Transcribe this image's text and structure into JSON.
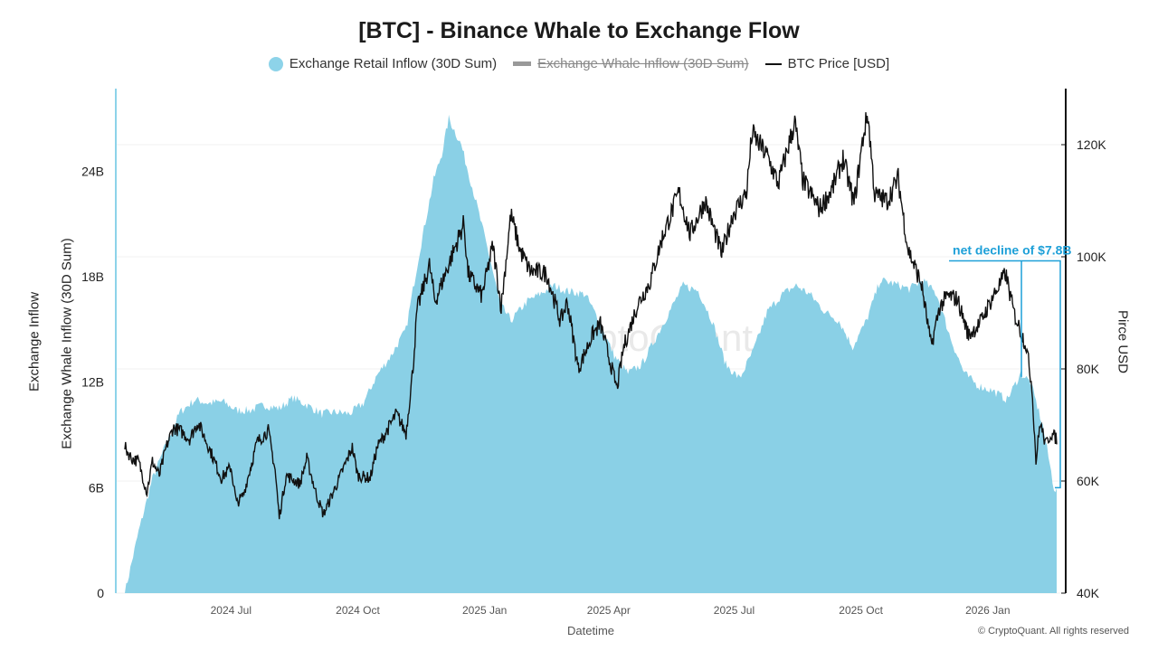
{
  "title": "[BTC] - Binance Whale to Exchange Flow",
  "legend": [
    {
      "label": "Exchange Retail Inflow (30D Sum)",
      "color": "#8dd3e9",
      "shape": "circle",
      "hidden": false
    },
    {
      "label": "Exchange Whale Inflow (30D Sum)",
      "color": "#999999",
      "shape": "bar",
      "hidden": true
    },
    {
      "label": "BTC Price [USD]",
      "color": "#111111",
      "shape": "line",
      "hidden": false
    }
  ],
  "axes": {
    "left_label_1": "Exchange Inflow",
    "left_label_2": "Exchange Whale Inflow (30D Sum)",
    "right_label": "Pirce USD",
    "x_label": "Datetime"
  },
  "credit": "© CryptoQuant. All rights reserved",
  "watermark": "CryptoQuant",
  "colors": {
    "area": "#8ad0e6",
    "price": "#111111",
    "annotation": "#1ea0d8",
    "axis_left": "#8dd3e9"
  },
  "chart_data": {
    "type": "area",
    "x_range": [
      "2024-04-15",
      "2026-02-20"
    ],
    "left_axis": {
      "ticks": [
        0,
        6,
        12,
        18,
        24
      ],
      "tick_labels": [
        "0",
        "6B",
        "12B",
        "18B",
        "24B"
      ],
      "unit": "B",
      "ylim": [
        0,
        28.7
      ]
    },
    "right_axis": {
      "ticks": [
        40000,
        60000,
        80000,
        100000,
        120000
      ],
      "tick_labels": [
        "40K",
        "60K",
        "80K",
        "100K",
        "120K"
      ],
      "ylim": [
        40000,
        130000
      ]
    },
    "x_ticks": [
      {
        "date": "2024-07-01",
        "label": "2024 Jul"
      },
      {
        "date": "2024-10-01",
        "label": "2024 Oct"
      },
      {
        "date": "2025-01-01",
        "label": "2025 Jan"
      },
      {
        "date": "2025-04-01",
        "label": "2025 Apr"
      },
      {
        "date": "2025-07-01",
        "label": "2025 Jul"
      },
      {
        "date": "2025-10-01",
        "label": "2025 Oct"
      },
      {
        "date": "2026-01-01",
        "label": "2026 Jan"
      }
    ],
    "series": [
      {
        "name": "Exchange Retail Inflow (30D Sum)",
        "unit": "B",
        "points": [
          [
            "2024-04-15",
            0.0
          ],
          [
            "2024-04-25",
            3.5
          ],
          [
            "2024-05-05",
            6.5
          ],
          [
            "2024-05-15",
            8.5
          ],
          [
            "2024-05-25",
            10.3
          ],
          [
            "2024-06-05",
            11.0
          ],
          [
            "2024-06-15",
            10.8
          ],
          [
            "2024-06-25",
            10.9
          ],
          [
            "2024-07-05",
            10.4
          ],
          [
            "2024-07-15",
            10.4
          ],
          [
            "2024-07-25",
            10.7
          ],
          [
            "2024-08-05",
            10.5
          ],
          [
            "2024-08-15",
            11.1
          ],
          [
            "2024-08-25",
            10.7
          ],
          [
            "2024-09-05",
            10.2
          ],
          [
            "2024-09-15",
            10.3
          ],
          [
            "2024-09-25",
            10.2
          ],
          [
            "2024-10-05",
            10.8
          ],
          [
            "2024-10-15",
            12.4
          ],
          [
            "2024-10-25",
            13.5
          ],
          [
            "2024-11-05",
            15.0
          ],
          [
            "2024-11-15",
            19.5
          ],
          [
            "2024-11-25",
            23.5
          ],
          [
            "2024-12-01",
            25.0
          ],
          [
            "2024-12-06",
            27.0
          ],
          [
            "2024-12-15",
            25.5
          ],
          [
            "2024-12-25",
            22.5
          ],
          [
            "2025-01-05",
            19.0
          ],
          [
            "2025-01-12",
            16.5
          ],
          [
            "2025-01-20",
            15.5
          ],
          [
            "2025-02-01",
            16.6
          ],
          [
            "2025-02-10",
            17.0
          ],
          [
            "2025-02-20",
            17.5
          ],
          [
            "2025-03-01",
            17.2
          ],
          [
            "2025-03-15",
            17.0
          ],
          [
            "2025-03-25",
            15.5
          ],
          [
            "2025-04-05",
            13.5
          ],
          [
            "2025-04-15",
            12.5
          ],
          [
            "2025-04-25",
            13.0
          ],
          [
            "2025-05-05",
            14.5
          ],
          [
            "2025-05-15",
            16.0
          ],
          [
            "2025-05-25",
            17.5
          ],
          [
            "2025-06-05",
            17.2
          ],
          [
            "2025-06-15",
            15.5
          ],
          [
            "2025-06-25",
            13.0
          ],
          [
            "2025-07-05",
            12.2
          ],
          [
            "2025-07-15",
            13.8
          ],
          [
            "2025-07-25",
            16.0
          ],
          [
            "2025-08-05",
            17.0
          ],
          [
            "2025-08-15",
            17.5
          ],
          [
            "2025-08-25",
            17.0
          ],
          [
            "2025-09-05",
            16.0
          ],
          [
            "2025-09-15",
            15.5
          ],
          [
            "2025-09-25",
            14.0
          ],
          [
            "2025-10-05",
            15.5
          ],
          [
            "2025-10-15",
            17.8
          ],
          [
            "2025-10-25",
            17.6
          ],
          [
            "2025-11-05",
            17.3
          ],
          [
            "2025-11-15",
            17.8
          ],
          [
            "2025-11-25",
            17.0
          ],
          [
            "2025-12-05",
            14.5
          ],
          [
            "2025-12-15",
            12.5
          ],
          [
            "2025-12-25",
            11.8
          ],
          [
            "2026-01-05",
            11.5
          ],
          [
            "2026-01-15",
            11.0
          ],
          [
            "2026-01-25",
            12.5
          ],
          [
            "2026-02-01",
            12.0
          ],
          [
            "2026-02-10",
            9.5
          ],
          [
            "2026-02-18",
            6.0
          ],
          [
            "2026-02-20",
            5.8
          ]
        ]
      },
      {
        "name": "BTC Price [USD]",
        "unit": "USD",
        "points": [
          [
            "2024-04-15",
            66000
          ],
          [
            "2024-04-20",
            64000
          ],
          [
            "2024-04-25",
            63500
          ],
          [
            "2024-05-01",
            58000
          ],
          [
            "2024-05-05",
            63500
          ],
          [
            "2024-05-10",
            61000
          ],
          [
            "2024-05-15",
            66000
          ],
          [
            "2024-05-20",
            69500
          ],
          [
            "2024-05-25",
            69000
          ],
          [
            "2024-06-01",
            67500
          ],
          [
            "2024-06-07",
            70500
          ],
          [
            "2024-06-15",
            66000
          ],
          [
            "2024-06-24",
            60500
          ],
          [
            "2024-07-01",
            62500
          ],
          [
            "2024-07-05",
            56000
          ],
          [
            "2024-07-10",
            57500
          ],
          [
            "2024-07-20",
            67000
          ],
          [
            "2024-07-28",
            69000
          ],
          [
            "2024-08-02",
            62000
          ],
          [
            "2024-08-05",
            53500
          ],
          [
            "2024-08-10",
            61000
          ],
          [
            "2024-08-20",
            59500
          ],
          [
            "2024-08-25",
            64000
          ],
          [
            "2024-09-01",
            57500
          ],
          [
            "2024-09-06",
            54000
          ],
          [
            "2024-09-15",
            59000
          ],
          [
            "2024-09-27",
            66000
          ],
          [
            "2024-10-01",
            61000
          ],
          [
            "2024-10-10",
            60500
          ],
          [
            "2024-10-15",
            66000
          ],
          [
            "2024-10-21",
            68500
          ],
          [
            "2024-10-29",
            72000
          ],
          [
            "2024-11-05",
            68500
          ],
          [
            "2024-11-10",
            80000
          ],
          [
            "2024-11-13",
            90500
          ],
          [
            "2024-11-22",
            98500
          ],
          [
            "2024-11-26",
            92000
          ],
          [
            "2024-12-05",
            98000
          ],
          [
            "2024-12-17",
            106000
          ],
          [
            "2024-12-20",
            97000
          ],
          [
            "2024-12-30",
            93000
          ],
          [
            "2025-01-07",
            102000
          ],
          [
            "2025-01-13",
            91000
          ],
          [
            "2025-01-20",
            107500
          ],
          [
            "2025-01-27",
            101000
          ],
          [
            "2025-02-03",
            97500
          ],
          [
            "2025-02-15",
            97000
          ],
          [
            "2025-02-25",
            88500
          ],
          [
            "2025-03-02",
            92000
          ],
          [
            "2025-03-10",
            80000
          ],
          [
            "2025-03-20",
            86000
          ],
          [
            "2025-03-26",
            88000
          ],
          [
            "2025-04-07",
            76500
          ],
          [
            "2025-04-12",
            84000
          ],
          [
            "2025-04-22",
            91500
          ],
          [
            "2025-05-01",
            95500
          ],
          [
            "2025-05-10",
            103500
          ],
          [
            "2025-05-22",
            111500
          ],
          [
            "2025-05-30",
            104000
          ],
          [
            "2025-06-10",
            110000
          ],
          [
            "2025-06-22",
            100500
          ],
          [
            "2025-06-30",
            107500
          ],
          [
            "2025-07-10",
            111500
          ],
          [
            "2025-07-14",
            122000
          ],
          [
            "2025-07-25",
            118000
          ],
          [
            "2025-08-02",
            113000
          ],
          [
            "2025-08-14",
            124000
          ],
          [
            "2025-08-20",
            113500
          ],
          [
            "2025-09-01",
            108500
          ],
          [
            "2025-09-10",
            112000
          ],
          [
            "2025-09-18",
            117500
          ],
          [
            "2025-09-26",
            109500
          ],
          [
            "2025-10-03",
            122000
          ],
          [
            "2025-10-06",
            125500
          ],
          [
            "2025-10-11",
            111000
          ],
          [
            "2025-10-20",
            110000
          ],
          [
            "2025-10-28",
            114000
          ],
          [
            "2025-11-04",
            101500
          ],
          [
            "2025-11-14",
            95000
          ],
          [
            "2025-11-21",
            84000
          ],
          [
            "2025-11-27",
            91000
          ],
          [
            "2025-12-03",
            93000
          ],
          [
            "2025-12-10",
            92500
          ],
          [
            "2025-12-18",
            86000
          ],
          [
            "2025-12-26",
            88000
          ],
          [
            "2026-01-05",
            93000
          ],
          [
            "2026-01-14",
            97000
          ],
          [
            "2026-01-20",
            90000
          ],
          [
            "2026-01-29",
            84000
          ],
          [
            "2026-02-02",
            77000
          ],
          [
            "2026-02-05",
            63500
          ],
          [
            "2026-02-08",
            70500
          ],
          [
            "2026-02-12",
            66500
          ],
          [
            "2026-02-16",
            68500
          ],
          [
            "2026-02-20",
            67500
          ]
        ]
      }
    ],
    "annotation": {
      "text": "net decline of $7.8B",
      "from_date": "2026-02-01",
      "from_value": 18.9,
      "to_value": 6.0,
      "marker_date": "2026-02-01",
      "marker_value": 12.3
    }
  }
}
